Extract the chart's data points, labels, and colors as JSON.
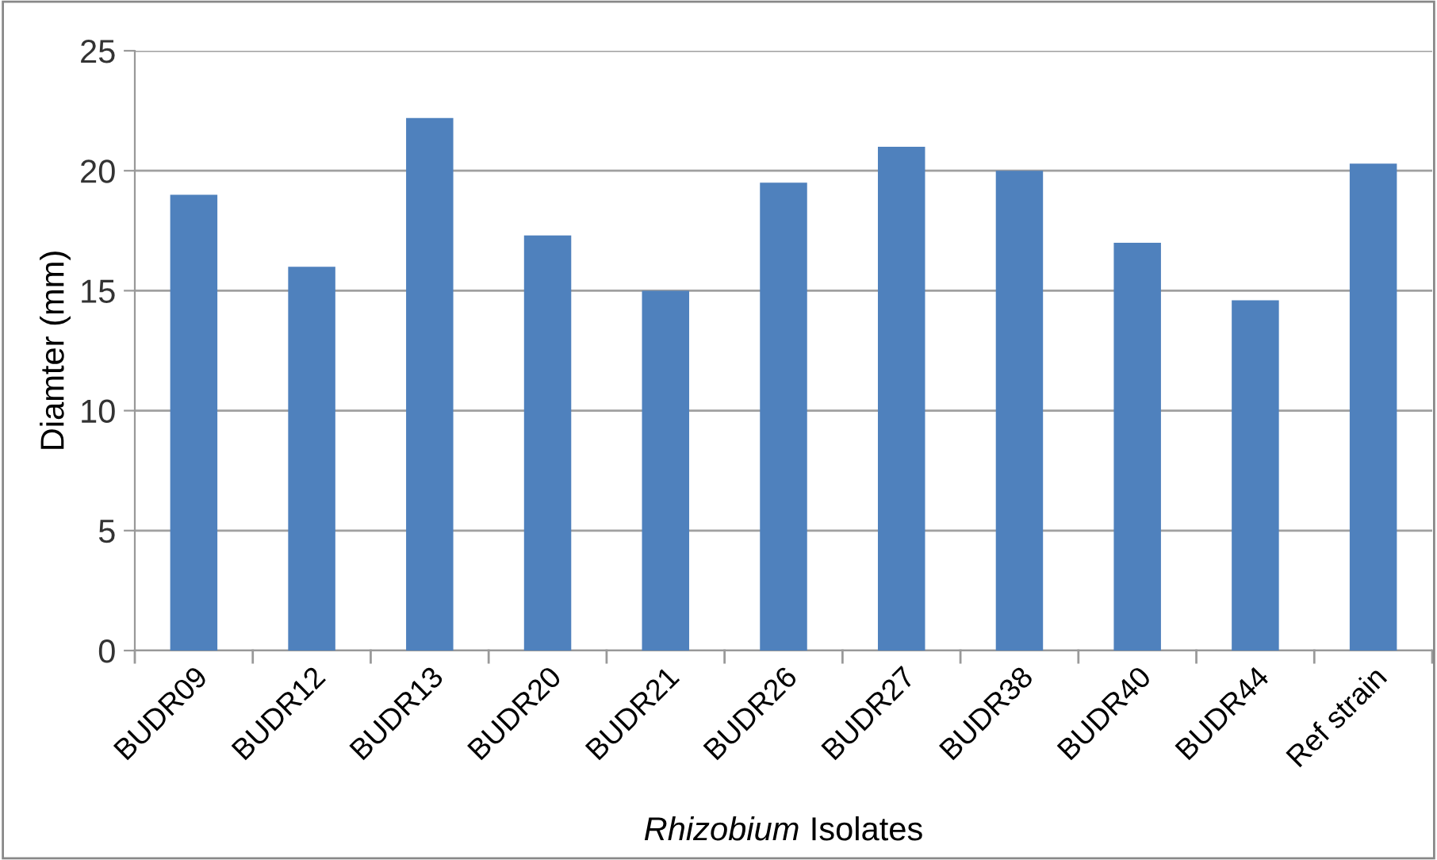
{
  "chart_data": {
    "type": "bar",
    "xlabel": "Rhizobium Isolates",
    "ylabel": "Diamter (mm)",
    "categories": [
      "BUDR09",
      "BUDR12",
      "BUDR13",
      "BUDR20",
      "BUDR21",
      "BUDR26",
      "BUDR27",
      "BUDR38",
      "BUDR40",
      "BUDR44",
      "Ref strain"
    ],
    "values": [
      19.0,
      16.0,
      22.2,
      17.3,
      15.0,
      19.5,
      21.0,
      20.0,
      17.0,
      14.6,
      20.3
    ],
    "color": "#4f81bd",
    "ylim": [
      0,
      25
    ],
    "yticks": [
      0,
      5,
      10,
      15,
      20,
      25
    ],
    "grid": "y"
  }
}
